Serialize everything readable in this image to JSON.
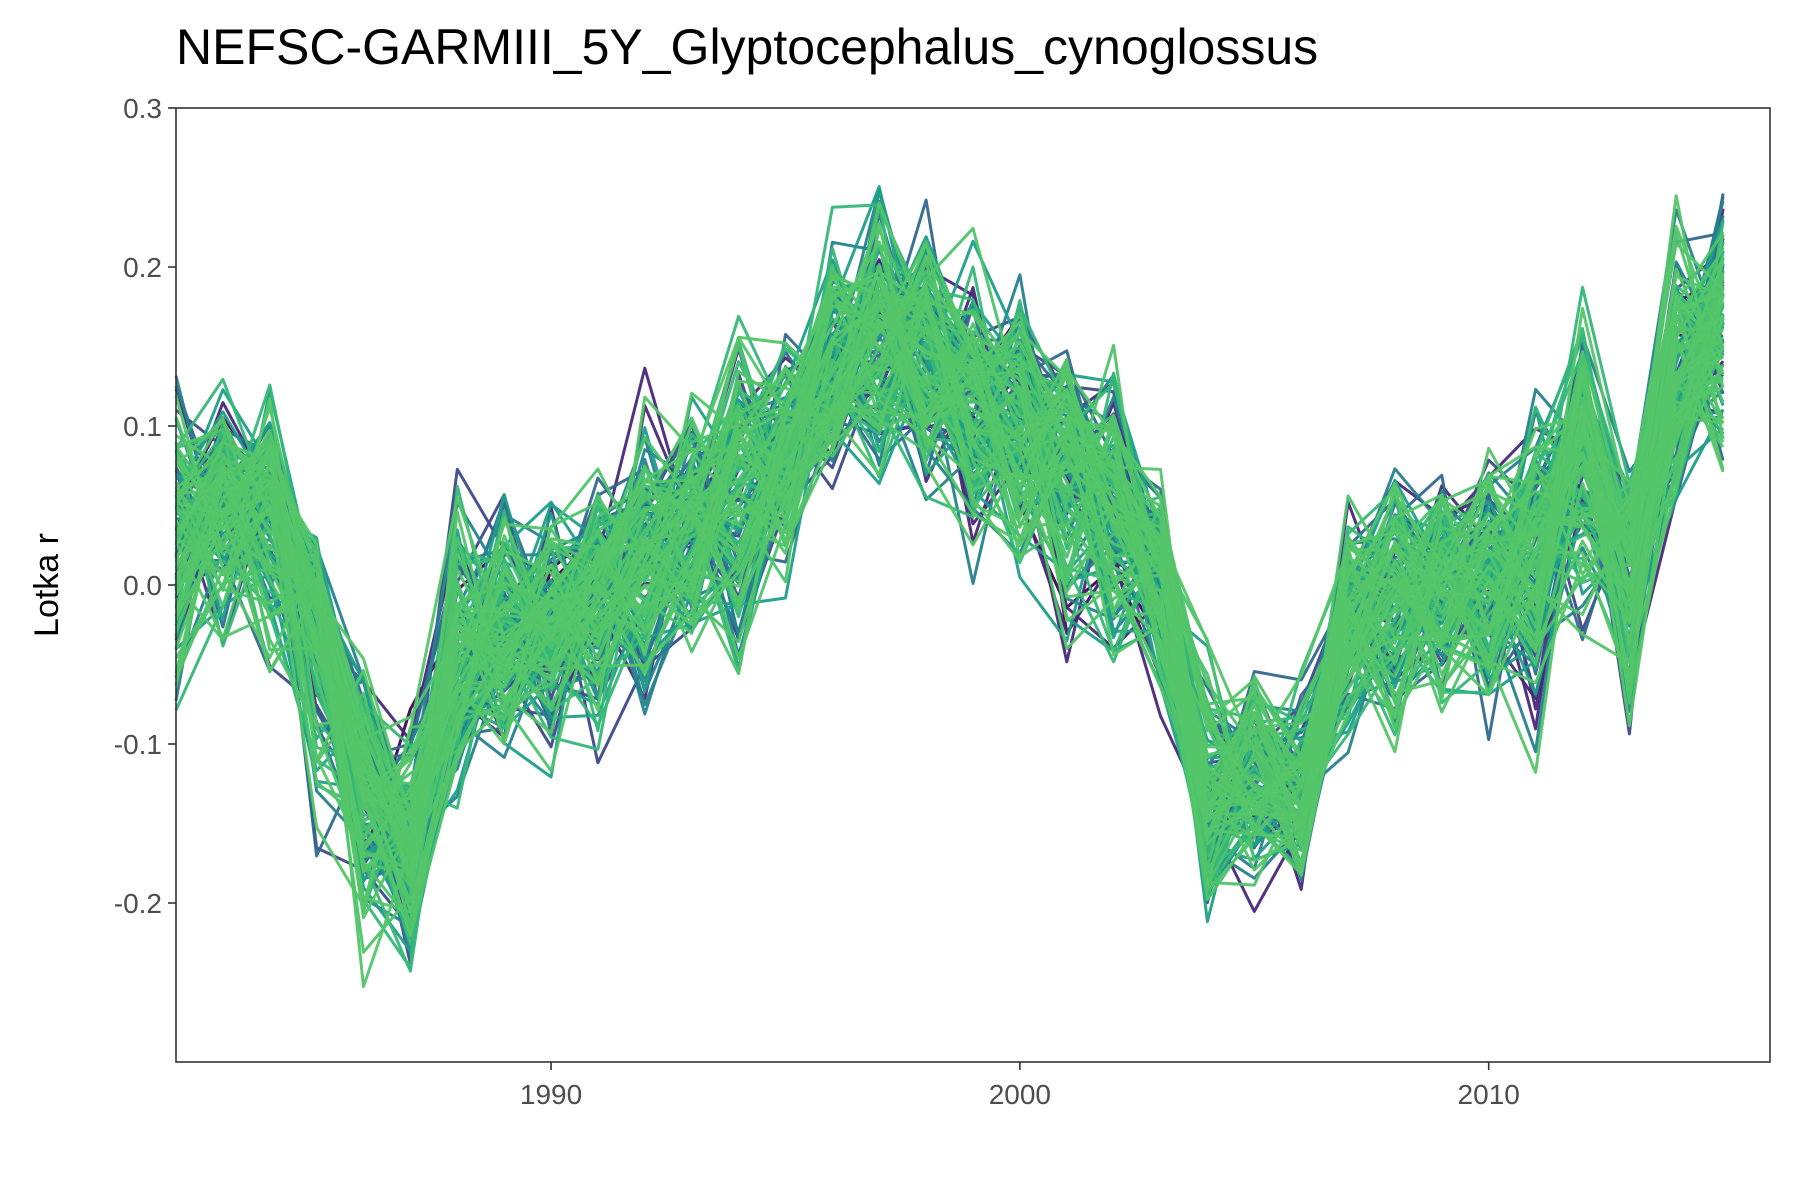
{
  "chart_data": {
    "type": "line",
    "title": "NEFSC-GARMIII_5Y_Glyptocephalus_cynoglossus",
    "xlabel": "",
    "ylabel": "Lotka r",
    "xlim": [
      1982,
      2016
    ],
    "ylim": [
      -0.3,
      0.3
    ],
    "x_ticks": [
      1990,
      2000,
      2010
    ],
    "x_tick_labels": [
      "1990",
      "2000",
      "2010"
    ],
    "y_ticks": [
      0.3,
      0.2,
      0.1,
      0.0,
      -0.1,
      -0.2
    ],
    "y_tick_labels": [
      "0.3",
      "0.2",
      "0.1",
      "0.0",
      "-0.1",
      "-0.2"
    ],
    "grid": false,
    "legend": "none",
    "palette": [
      "#440154",
      "#482878",
      "#3e4989",
      "#31688e",
      "#26828e",
      "#1f9e89",
      "#35b779",
      "#4ec36b",
      "#54c568"
    ],
    "x": [
      1982,
      1983,
      1984,
      1985,
      1986,
      1987,
      1988,
      1989,
      1990,
      1991,
      1992,
      1993,
      1994,
      1995,
      1996,
      1997,
      1998,
      1999,
      2000,
      2001,
      2002,
      2003,
      2004,
      2005,
      2006,
      2007,
      2008,
      2009,
      2010,
      2011,
      2012,
      2013,
      2014,
      2015
    ],
    "central_estimate": [
      0.04,
      0.06,
      0.05,
      -0.02,
      -0.13,
      -0.16,
      -0.05,
      -0.04,
      -0.02,
      0.0,
      0.02,
      0.04,
      0.07,
      0.08,
      0.13,
      0.16,
      0.15,
      0.12,
      0.09,
      0.08,
      0.05,
      0.01,
      -0.14,
      -0.12,
      -0.13,
      -0.02,
      -0.01,
      0.0,
      0.0,
      0.03,
      0.1,
      0.02,
      0.12,
      0.18
    ],
    "band_min": [
      -0.12,
      -0.08,
      -0.1,
      -0.2,
      -0.27,
      -0.27,
      -0.17,
      -0.16,
      -0.14,
      -0.13,
      -0.1,
      -0.07,
      -0.1,
      -0.03,
      0.05,
      0.03,
      0.02,
      -0.02,
      -0.02,
      -0.08,
      -0.07,
      -0.1,
      -0.24,
      -0.21,
      -0.21,
      -0.13,
      -0.14,
      -0.12,
      -0.12,
      -0.13,
      -0.06,
      -0.14,
      0.02,
      0.04
    ],
    "band_max": [
      0.16,
      0.14,
      0.14,
      0.05,
      -0.01,
      -0.05,
      0.1,
      0.09,
      0.07,
      0.09,
      0.15,
      0.15,
      0.19,
      0.17,
      0.26,
      0.28,
      0.26,
      0.24,
      0.22,
      0.18,
      0.18,
      0.08,
      -0.02,
      -0.02,
      -0.03,
      0.07,
      0.09,
      0.1,
      0.1,
      0.14,
      0.22,
      0.09,
      0.26,
      0.27
    ]
  }
}
